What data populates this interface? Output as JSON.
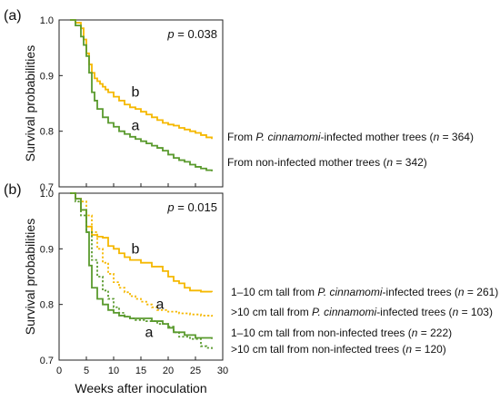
{
  "chart_data": [
    {
      "type": "line",
      "panel_label": "(a)",
      "ylabel": "Survival probabilities",
      "xlabel": "",
      "xlim": [
        0,
        30
      ],
      "ylim": [
        0.7,
        1.0
      ],
      "yticks": [
        "0.7",
        "0.8",
        "0.9",
        "1.0"
      ],
      "p_prefix": "p",
      "p_value": " = 0.038",
      "colors": {
        "infected": "#f5b800",
        "noninfected": "#5a9a2e"
      },
      "annotations": [
        {
          "text": "b",
          "x": 14,
          "y": 0.87
        },
        {
          "text": "a",
          "x": 14,
          "y": 0.81
        }
      ],
      "series": [
        {
          "name": "From P. cinnamomi-infected mother trees (n = 364)",
          "legend": [
            {
              "t": "From ",
              "i": false
            },
            {
              "t": "P. cinnamomi",
              "i": true
            },
            {
              "t": "-infected mother trees (",
              "i": false
            },
            {
              "t": "n",
              "i": true
            },
            {
              "t": " = 364)",
              "i": false
            }
          ],
          "color": "infected",
          "dashed": false,
          "x": [
            2,
            3,
            4,
            4.5,
            5,
            5.5,
            6,
            6.5,
            7,
            7.5,
            8,
            8.5,
            9,
            10,
            11,
            12,
            13,
            14,
            15,
            16,
            17,
            18,
            19,
            20,
            21,
            22,
            23,
            24,
            25,
            26,
            27,
            28
          ],
          "y": [
            1.0,
            0.995,
            0.985,
            0.965,
            0.94,
            0.92,
            0.905,
            0.895,
            0.89,
            0.885,
            0.88,
            0.875,
            0.87,
            0.862,
            0.855,
            0.848,
            0.843,
            0.84,
            0.835,
            0.83,
            0.825,
            0.82,
            0.815,
            0.812,
            0.81,
            0.806,
            0.803,
            0.8,
            0.797,
            0.793,
            0.789,
            0.786
          ]
        },
        {
          "name": "From non-infected mother trees (n = 342)",
          "legend": [
            {
              "t": "From non-infected mother trees (",
              "i": false
            },
            {
              "t": "n",
              "i": true
            },
            {
              "t": " = 342)",
              "i": false
            }
          ],
          "color": "noninfected",
          "dashed": false,
          "x": [
            2,
            3,
            4,
            4.5,
            5,
            5.5,
            6,
            6.5,
            7,
            8,
            9,
            10,
            11,
            12,
            13,
            14,
            15,
            16,
            17,
            18,
            19,
            20,
            21,
            22,
            23,
            24,
            25,
            26,
            27,
            28
          ],
          "y": [
            1.0,
            0.99,
            0.97,
            0.955,
            0.935,
            0.905,
            0.87,
            0.855,
            0.84,
            0.825,
            0.815,
            0.808,
            0.8,
            0.795,
            0.79,
            0.786,
            0.782,
            0.778,
            0.774,
            0.77,
            0.765,
            0.758,
            0.752,
            0.748,
            0.745,
            0.74,
            0.736,
            0.733,
            0.73,
            0.728
          ]
        }
      ]
    },
    {
      "type": "line",
      "panel_label": "(b)",
      "ylabel": "Survival probabilities",
      "xlabel": "Weeks after inoculation",
      "xlim": [
        0,
        30
      ],
      "ylim": [
        0.7,
        1.0
      ],
      "yticks": [
        "0.7",
        "0.8",
        "0.9",
        "1.0"
      ],
      "xticks": [
        "0",
        "5",
        "10",
        "15",
        "20",
        "25",
        "30"
      ],
      "p_prefix": "p",
      "p_value": " = 0.015",
      "colors": {
        "infected": "#f5b800",
        "noninfected": "#5a9a2e"
      },
      "annotations": [
        {
          "text": "b",
          "x": 14,
          "y": 0.9
        },
        {
          "text": "a",
          "x": 18.5,
          "y": 0.8
        },
        {
          "text": "a",
          "x": 16.5,
          "y": 0.75
        }
      ],
      "series": [
        {
          "name": "1–10 cm tall from P. cinnamomi-infected trees (n = 261)",
          "legend": [
            {
              "t": "1–10 cm tall from ",
              "i": false
            },
            {
              "t": "P. cinnamomi",
              "i": true
            },
            {
              "t": "-infected trees (",
              "i": false
            },
            {
              "t": "n",
              "i": true
            },
            {
              "t": " = 261)",
              "i": false
            }
          ],
          "color": "infected",
          "dashed": false,
          "x": [
            2,
            3,
            4,
            5,
            6,
            7,
            8,
            9,
            10,
            11,
            12,
            13,
            15,
            17,
            19,
            20,
            21,
            22,
            23,
            24,
            26,
            28
          ],
          "y": [
            1.0,
            0.99,
            0.97,
            0.94,
            0.925,
            0.922,
            0.92,
            0.905,
            0.9,
            0.892,
            0.885,
            0.88,
            0.875,
            0.868,
            0.86,
            0.85,
            0.842,
            0.838,
            0.83,
            0.825,
            0.823,
            0.822
          ]
        },
        {
          "name": ">10 cm tall from P. cinnamomi-infected trees (n = 103)",
          "legend": [
            {
              "t": ">10 cm tall from ",
              "i": false
            },
            {
              "t": "P. cinnamomi",
              "i": true
            },
            {
              "t": "-infected trees (",
              "i": false
            },
            {
              "t": "n",
              "i": true
            },
            {
              "t": " = 103)",
              "i": false
            }
          ],
          "color": "infected",
          "dashed": true,
          "x": [
            2,
            3,
            4,
            5,
            6,
            7,
            8,
            9,
            10,
            11,
            12,
            13,
            14,
            15,
            16,
            17,
            18,
            20,
            22,
            24,
            26,
            28
          ],
          "y": [
            1.0,
            0.99,
            0.985,
            0.96,
            0.93,
            0.9,
            0.875,
            0.855,
            0.84,
            0.83,
            0.822,
            0.815,
            0.81,
            0.805,
            0.8,
            0.795,
            0.79,
            0.787,
            0.784,
            0.782,
            0.78,
            0.778
          ]
        },
        {
          "name": "1–10 cm tall from non-infected trees (n = 222)",
          "legend": [
            {
              "t": "1–10 cm tall from non-infected trees (",
              "i": false
            },
            {
              "t": "n",
              "i": true
            },
            {
              "t": " = 222)",
              "i": false
            }
          ],
          "color": "noninfected",
          "dashed": false,
          "x": [
            2,
            3,
            4,
            5,
            5.5,
            6,
            7,
            8,
            9,
            10,
            11,
            12,
            13,
            15,
            17,
            19,
            20,
            21,
            23,
            25,
            28
          ],
          "y": [
            1.0,
            0.99,
            0.97,
            0.93,
            0.87,
            0.83,
            0.81,
            0.8,
            0.79,
            0.785,
            0.78,
            0.778,
            0.775,
            0.775,
            0.77,
            0.765,
            0.758,
            0.75,
            0.745,
            0.74,
            0.738
          ]
        },
        {
          "name": ">10 cm tall from non-infected trees (n = 120)",
          "legend": [
            {
              "t": ">10 cm tall from non-infected trees (",
              "i": false
            },
            {
              "t": "n",
              "i": true
            },
            {
              "t": " = 120)",
              "i": false
            }
          ],
          "color": "noninfected",
          "dashed": true,
          "x": [
            2,
            3,
            4,
            5,
            6,
            7,
            8,
            9,
            10,
            11,
            12,
            13,
            14,
            16,
            18,
            20,
            21,
            22,
            24,
            26,
            27,
            28
          ],
          "y": [
            1.0,
            0.985,
            0.96,
            0.93,
            0.88,
            0.85,
            0.825,
            0.81,
            0.795,
            0.785,
            0.778,
            0.775,
            0.772,
            0.77,
            0.765,
            0.76,
            0.75,
            0.742,
            0.738,
            0.725,
            0.722,
            0.72
          ]
        }
      ]
    }
  ]
}
